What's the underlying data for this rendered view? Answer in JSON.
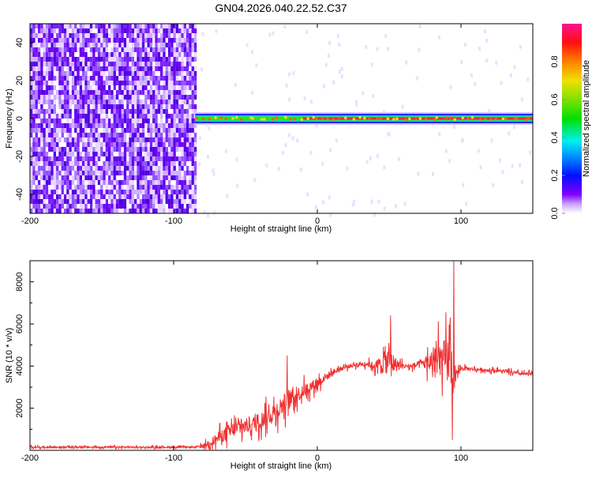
{
  "title": "GN04.2026.040.22.52.C37",
  "chart_data": [
    {
      "type": "heatmap",
      "title": "GN04.2026.040.22.52.C37",
      "xlabel": "Height of straight line (km)",
      "ylabel": "Frequency (Hz)",
      "xlim": [
        -200,
        150
      ],
      "ylim": [
        -50,
        50
      ],
      "xticks": [
        "-200",
        "-100",
        "0",
        "100"
      ],
      "xtick_values": [
        -200,
        -100,
        0,
        100
      ],
      "yticks": [
        "40",
        "20",
        "0",
        "-20",
        "-40"
      ],
      "ytick_values": [
        40,
        20,
        0,
        -20,
        -40
      ],
      "noise_region_km": [
        -200,
        -85
      ],
      "signal_band": {
        "from_km": -85,
        "to_km": 150,
        "center_hz": 0,
        "halfwidth_hz": 3,
        "peak_amplitude": 0.95
      },
      "colorbar": {
        "label": "Normalized spectral amplitude",
        "range": [
          0,
          1
        ],
        "ticks": [
          "0.0",
          "0.2",
          "0.4",
          "0.6",
          "0.8"
        ],
        "tick_values": [
          0,
          0.2,
          0.4,
          0.6,
          0.8
        ]
      }
    },
    {
      "type": "line",
      "xlabel": "Height of straight line (km)",
      "ylabel": "SNR (10 * v/v)",
      "xlim": [
        -200,
        150
      ],
      "ylim": [
        0,
        9000
      ],
      "xticks": [
        "-200",
        "-100",
        "0",
        "100"
      ],
      "xtick_values": [
        -200,
        -100,
        0,
        100
      ],
      "yticks": [
        "2000",
        "4000",
        "6000",
        "8000"
      ],
      "ytick_values": [
        2000,
        4000,
        6000,
        8000
      ],
      "color": "#f03030",
      "x": [
        -200,
        -180,
        -160,
        -140,
        -120,
        -100,
        -85,
        -80,
        -75,
        -70,
        -65,
        -60,
        -55,
        -50,
        -45,
        -40,
        -35,
        -30,
        -25,
        -20,
        -15,
        -10,
        -5,
        0,
        5,
        10,
        15,
        20,
        25,
        30,
        35,
        40,
        45,
        50,
        55,
        60,
        65,
        70,
        75,
        80,
        85,
        90,
        93,
        95,
        97,
        100,
        110,
        120,
        130,
        140,
        150
      ],
      "values": [
        150,
        150,
        150,
        150,
        150,
        150,
        150,
        200,
        350,
        550,
        750,
        950,
        1050,
        1150,
        1250,
        1400,
        1600,
        1800,
        2100,
        2400,
        2600,
        2800,
        3000,
        3200,
        3450,
        3650,
        3850,
        3950,
        4050,
        4100,
        4100,
        4000,
        4100,
        4300,
        4050,
        4000,
        4000,
        4050,
        4150,
        4200,
        4300,
        4300,
        4400,
        3000,
        3600,
        3900,
        3850,
        3800,
        3750,
        3650,
        3600
      ],
      "noise_amplitude": [
        100,
        100,
        100,
        100,
        100,
        100,
        100,
        200,
        400,
        700,
        800,
        900,
        900,
        900,
        900,
        1000,
        1000,
        1100,
        1200,
        1200,
        900,
        800,
        700,
        600,
        500,
        400,
        300,
        250,
        250,
        250,
        300,
        500,
        1200,
        1500,
        800,
        300,
        300,
        400,
        800,
        1300,
        2000,
        2500,
        3000,
        1500,
        500,
        250,
        200,
        200,
        200,
        200,
        200
      ],
      "peaks": [
        {
          "x": 95,
          "y": 9000
        },
        {
          "x": 51,
          "y": 6400
        },
        {
          "x": -21,
          "y": 4500
        },
        {
          "x": 94,
          "y": 500
        }
      ]
    }
  ]
}
